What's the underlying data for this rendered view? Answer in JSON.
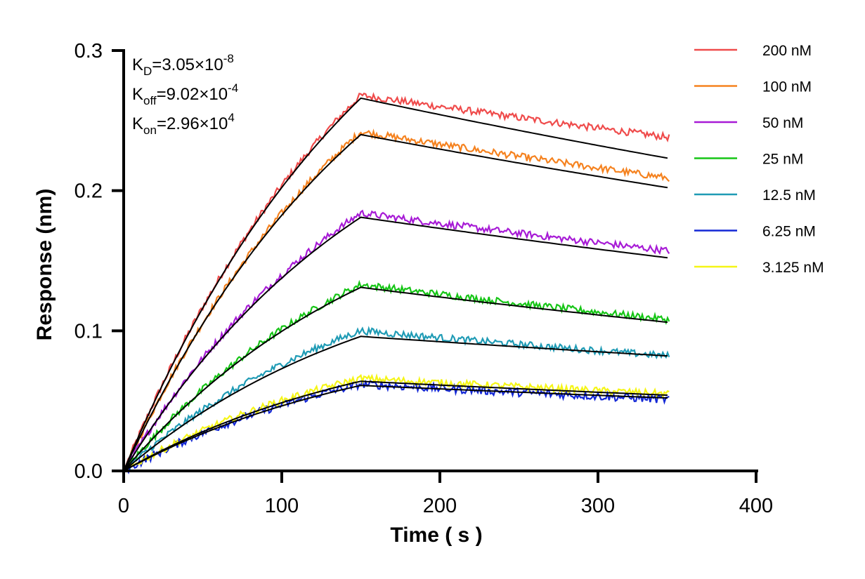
{
  "chart_data": {
    "type": "line",
    "title": "",
    "xlabel": "Time ( s )",
    "ylabel": "Response (nm)",
    "xlim": [
      0,
      400
    ],
    "ylim": [
      0,
      0.3
    ],
    "xticks": [
      0,
      100,
      200,
      300,
      400
    ],
    "xtick_labels": [
      "0",
      "100",
      "200",
      "300",
      "400"
    ],
    "yticks": [
      0.0,
      0.1,
      0.2,
      0.3
    ],
    "ytick_labels": [
      "0.0",
      "0.1",
      "0.2",
      "0.3"
    ],
    "grid": false,
    "legend_position": "right",
    "association_end_time": 150,
    "end_time": 345,
    "annotations": [
      {
        "base": "K",
        "sub": "D",
        "value": "=3.05×10",
        "exp": "-8"
      },
      {
        "base": "K",
        "sub": "off",
        "value": "=9.02×10",
        "exp": "-4"
      },
      {
        "base": "K",
        "sub": "on",
        "value": "=2.96×10",
        "exp": "4"
      }
    ],
    "fit_color": "#000000",
    "series": [
      {
        "name": "200 nM",
        "color": "#ef4b4b",
        "peak": 0.268,
        "end": 0.238,
        "fit_peak": 0.266,
        "fit_end": 0.223,
        "noise": 0.0025
      },
      {
        "name": "100 nM",
        "color": "#f5821f",
        "peak": 0.242,
        "end": 0.209,
        "fit_peak": 0.24,
        "fit_end": 0.202,
        "noise": 0.0025
      },
      {
        "name": "50 nM",
        "color": "#a71bd6",
        "peak": 0.184,
        "end": 0.157,
        "fit_peak": 0.181,
        "fit_end": 0.152,
        "noise": 0.0025
      },
      {
        "name": "25 nM",
        "color": "#16c516",
        "peak": 0.133,
        "end": 0.108,
        "fit_peak": 0.131,
        "fit_end": 0.106,
        "noise": 0.0025
      },
      {
        "name": "12.5 nM",
        "color": "#1f9bb5",
        "peak": 0.1,
        "end": 0.082,
        "fit_peak": 0.096,
        "fit_end": 0.082,
        "noise": 0.0025
      },
      {
        "name": "6.25 nM",
        "color": "#1428d6",
        "peak": 0.062,
        "end": 0.051,
        "fit_peak": 0.061,
        "fit_end": 0.052,
        "noise": 0.003
      },
      {
        "name": "3.125 nM",
        "color": "#f5f516",
        "peak": 0.066,
        "end": 0.055,
        "fit_peak": 0.064,
        "fit_end": 0.054,
        "noise": 0.0025
      }
    ]
  }
}
